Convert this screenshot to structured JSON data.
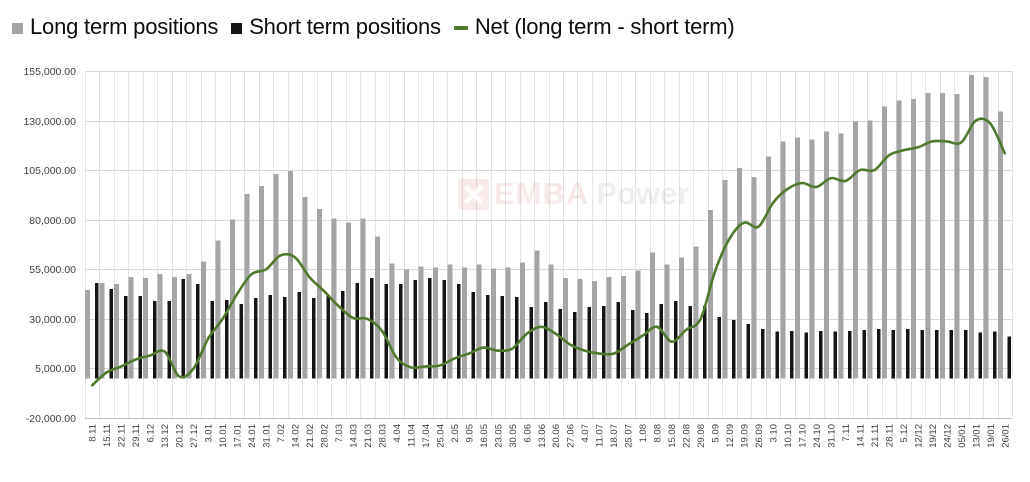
{
  "legend": {
    "items": [
      {
        "label": "Long term positions",
        "marker": "square",
        "color": "#a5a5a5"
      },
      {
        "label": "Short term positions",
        "marker": "square",
        "color": "#151515"
      },
      {
        "label": "Net (long term - short term)",
        "marker": "dash",
        "color": "#4f7a2d"
      }
    ]
  },
  "watermark": {
    "brand_first": "EMBA",
    "brand_second": "Power"
  },
  "y_axis": {
    "ticks": [
      {
        "value": 155000,
        "label": "155,000.00"
      },
      {
        "value": 130000,
        "label": "130,000.00"
      },
      {
        "value": 105000,
        "label": "105,000.00"
      },
      {
        "value": 80000,
        "label": "80,000.00"
      },
      {
        "value": 55000,
        "label": "55,000.00"
      },
      {
        "value": 30000,
        "label": "30,000.00"
      },
      {
        "value": 5000,
        "label": "5,000.00"
      },
      {
        "value": -20000,
        "label": "-20,000.00"
      }
    ]
  },
  "chart_data": {
    "type": "bar+line",
    "title": "",
    "xlabel": "",
    "ylabel": "",
    "ylim": [
      -20000,
      155000
    ],
    "y_step": 25000,
    "grid": true,
    "legend_position": "top",
    "categories": [
      "8.11",
      "15.11",
      "22.11",
      "29.11",
      "6.12",
      "13.12",
      "20.12",
      "27.12",
      "3.01",
      "10.01",
      "17.01",
      "24.01",
      "31.01",
      "7.02",
      "14.02",
      "21.02",
      "28.02",
      "7.03",
      "14.03",
      "21.03",
      "28.03",
      "4.04",
      "11.04",
      "17.04",
      "25.04",
      "2.05",
      "9.05",
      "16.05",
      "23.05",
      "30.05",
      "6.06",
      "13.06",
      "20.06",
      "27.06",
      "4.07",
      "11.07",
      "18.07",
      "25.07",
      "1.08",
      "8.08",
      "15.08",
      "22.08",
      "29.08",
      "5.09",
      "12.09",
      "19.09",
      "26.09",
      "3.10",
      "10.10",
      "17.10",
      "24.10",
      "31.10",
      "7.11",
      "14.11",
      "21.11",
      "28.11",
      "5.12",
      "12/12",
      "19/12",
      "24/12",
      "05/01",
      "13/01",
      "19/01",
      "26/01"
    ],
    "series": [
      {
        "name": "Long term positions",
        "type": "bar",
        "color": "#a5a5a5",
        "values": [
          44500,
          48000,
          47500,
          51000,
          50500,
          52500,
          51000,
          52500,
          59000,
          69500,
          80000,
          93000,
          97000,
          103000,
          104500,
          91500,
          85500,
          80500,
          78500,
          80500,
          71500,
          58000,
          55000,
          56500,
          56000,
          57500,
          56000,
          57500,
          55500,
          56000,
          58500,
          64500,
          57500,
          50500,
          50000,
          49000,
          51000,
          51500,
          54500,
          63500,
          57500,
          61000,
          66500,
          85000,
          100000,
          106000,
          101500,
          112000,
          119500,
          121500,
          120500,
          124500,
          123500,
          129500,
          130000,
          137000,
          140000,
          141000,
          144000,
          144000,
          143500,
          153000,
          152000,
          134500
        ]
      },
      {
        "name": "Short term positions",
        "type": "bar",
        "color": "#151515",
        "values": [
          48000,
          45000,
          41500,
          41500,
          39000,
          39000,
          50000,
          47500,
          39000,
          39500,
          37500,
          40500,
          42000,
          41000,
          43500,
          40500,
          41500,
          44000,
          48000,
          50500,
          47500,
          47500,
          49500,
          50500,
          49500,
          47500,
          43500,
          42000,
          41500,
          41000,
          36000,
          38500,
          35000,
          33500,
          36000,
          36500,
          38500,
          34500,
          33000,
          37500,
          39000,
          36500,
          36500,
          31000,
          29500,
          27500,
          25000,
          23500,
          24000,
          23000,
          24000,
          23500,
          24000,
          24500,
          25000,
          24500,
          25000,
          24500,
          24500,
          24500,
          24500,
          23000,
          23500,
          21000
        ]
      },
      {
        "name": "Net (long term - short term)",
        "type": "line",
        "color": "#4f7a2d",
        "values": [
          -3500,
          3000,
          6000,
          9500,
          11500,
          13500,
          1000,
          5000,
          20000,
          30000,
          42500,
          52500,
          55000,
          62000,
          61000,
          51000,
          44000,
          36500,
          30500,
          30000,
          24000,
          10500,
          5500,
          6000,
          6500,
          10000,
          12500,
          15500,
          14000,
          15000,
          22500,
          26000,
          22500,
          17000,
          14000,
          12500,
          12500,
          17000,
          21500,
          26000,
          18500,
          24500,
          30000,
          54000,
          70500,
          78500,
          76500,
          88500,
          95500,
          98500,
          96500,
          101000,
          99500,
          105000,
          105000,
          112500,
          115000,
          116500,
          119500,
          119500,
          119000,
          130000,
          128500,
          113500
        ]
      }
    ]
  },
  "style": {
    "gridline_color": "#d9d9d9",
    "vertical_gridline_color": "#e4e4e4",
    "axis_line_color": "#bfbfbf",
    "tick_label_color": "#404040"
  }
}
